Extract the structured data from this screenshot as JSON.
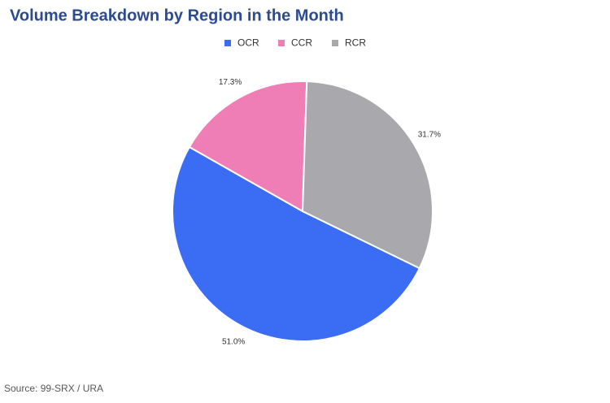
{
  "chart_data": {
    "type": "pie",
    "title": "Volume Breakdown by Region in the Month",
    "categories": [
      "OCR",
      "CCR",
      "RCR"
    ],
    "values": [
      51.0,
      17.3,
      31.7
    ],
    "value_labels": [
      "51.0%",
      "17.3%",
      "31.7%"
    ],
    "colors": [
      "#3a6cf4",
      "#ef7eb6",
      "#a9a9ad"
    ],
    "legend": "top"
  },
  "source": "Source: 99-SRX / URA"
}
